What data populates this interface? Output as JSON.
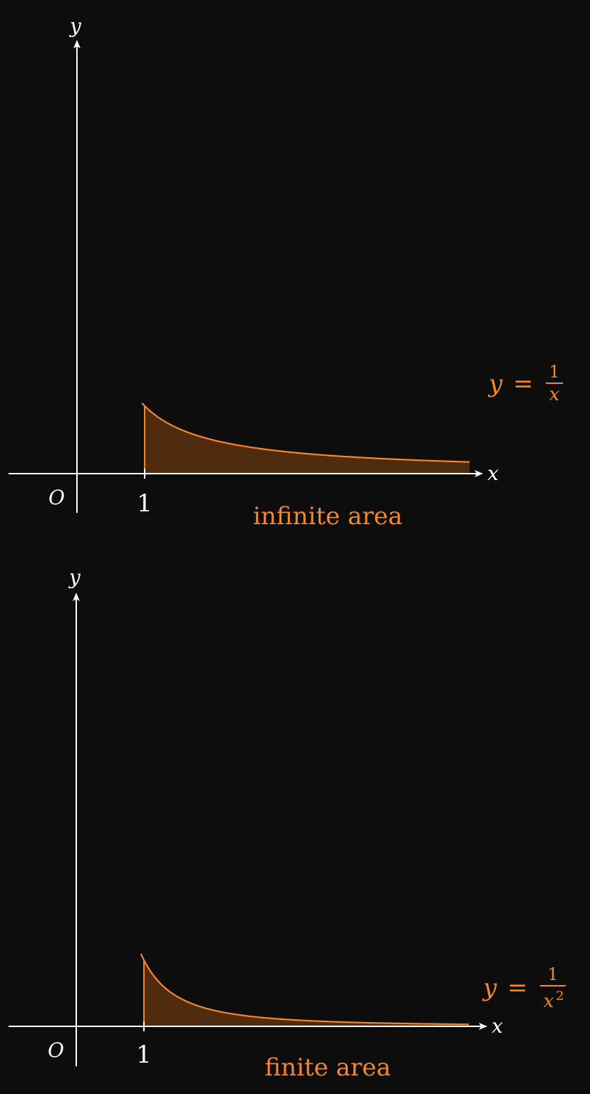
{
  "colors": {
    "background": "#0d0d0d",
    "axis": "#ffffff",
    "curve": "#f5862a",
    "area_fill": "#4f2c0d"
  },
  "chart_data": [
    {
      "type": "area",
      "function": "1/x",
      "x_axis_label": "x",
      "y_axis_label": "y",
      "origin_label": "O",
      "tick_label": "1",
      "xlim": [
        -1,
        6
      ],
      "ylim": [
        0,
        6
      ],
      "shade_from": 1,
      "shade_to": 5.8,
      "equation": {
        "lhs": "y",
        "op": "=",
        "numerator": "1",
        "denominator": "x",
        "exponent": ""
      },
      "caption": "infinite area"
    },
    {
      "type": "area",
      "function": "1/x^2",
      "x_axis_label": "x",
      "y_axis_label": "y",
      "origin_label": "O",
      "tick_label": "1",
      "xlim": [
        -1,
        6
      ],
      "ylim": [
        0,
        7
      ],
      "shade_from": 1,
      "shade_to": 5.8,
      "equation": {
        "lhs": "y",
        "op": "=",
        "numerator": "1",
        "denominator": "x",
        "exponent": "2"
      },
      "caption": "finite area"
    }
  ]
}
